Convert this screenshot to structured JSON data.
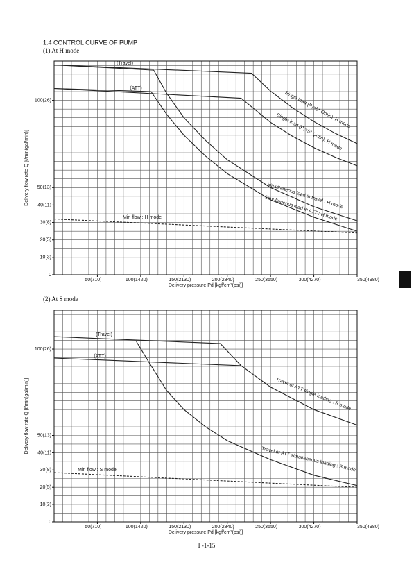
{
  "section_title": "1.4 CONTROL CURVE OF PUMP",
  "page_number": "I -1-15",
  "chart_data": [
    {
      "type": "line",
      "title": "(1) At H mode",
      "x_label": "Delivery pressure Pd [kgf/cm²(psi)]",
      "y_label": "Delivery flow rate Q [ℓ/min(gal/min)]",
      "xlim": [
        0,
        350
      ],
      "ylim": [
        0,
        122.5
      ],
      "xticks": [
        {
          "value": 50,
          "label": "50(710)"
        },
        {
          "value": 100,
          "label": "100(1420)"
        },
        {
          "value": 150,
          "label": "150(2130)"
        },
        {
          "value": 200,
          "label": "200(2840)"
        },
        {
          "value": 250,
          "label": "250(3550)"
        },
        {
          "value": 300,
          "label": "300(4270)"
        },
        {
          "value": 350,
          "label": "350(4980)"
        }
      ],
      "yticks": [
        0,
        {
          "value": 10,
          "label": "10(3)"
        },
        {
          "value": 20,
          "label": "20(5)"
        },
        {
          "value": 30,
          "label": "30(8)"
        },
        {
          "value": 40,
          "label": "40(11)"
        },
        {
          "value": 50,
          "label": "50(13)"
        },
        {
          "value": 100,
          "label": "100(26)"
        }
      ],
      "xgrid": [
        0,
        10,
        20,
        30,
        40,
        50,
        60,
        70,
        80,
        90,
        100,
        110,
        120,
        130,
        140,
        150,
        160,
        170,
        180,
        190,
        200,
        210,
        220,
        230,
        240,
        250,
        260,
        270,
        280,
        290,
        300,
        310,
        320,
        330,
        340,
        350
      ],
      "ygrid": [
        0,
        5,
        10,
        15,
        20,
        25,
        30,
        35,
        40,
        45,
        50,
        55,
        60,
        65,
        70,
        75,
        80,
        85,
        90,
        95,
        100,
        105,
        110,
        115,
        120
      ],
      "grid": true,
      "annotations": [
        "(Travel)",
        "(ATT)"
      ],
      "series": [
        {
          "name": "Single load (P₁=5* Qmin): H mode",
          "color": "#222222",
          "dashed": false,
          "x": [
            0,
            228,
            250,
            275,
            300,
            325,
            350
          ],
          "values": [
            120.3,
            115.5,
            105.3,
            95.8,
            87.8,
            81,
            75.2
          ]
        },
        {
          "name": "Single load (P₁=5* Qmin): H mode",
          "color": "#222222",
          "dashed": false,
          "x": [
            0,
            216,
            250,
            275,
            300,
            325,
            350
          ],
          "values": [
            106.8,
            101.2,
            87.4,
            79.5,
            72.9,
            67.3,
            62.5
          ]
        },
        {
          "name": "Simultaneous load in travel : H mode",
          "color": "#222222",
          "dashed": false,
          "x": [
            0,
            115,
            130,
            150,
            175,
            200,
            250,
            300,
            350
          ],
          "values": [
            120.3,
            117.3,
            104,
            90,
            77,
            66,
            50,
            39,
            31
          ]
        },
        {
          "name": "Simultaneous load in ATT : H mode",
          "color": "#222222",
          "dashed": false,
          "x": [
            0,
            112,
            130,
            150,
            175,
            200,
            250,
            300,
            350
          ],
          "values": [
            106.8,
            105,
            92,
            80,
            68,
            58,
            43,
            33,
            25
          ]
        },
        {
          "name": "Min flow : H mode",
          "color": "#222222",
          "dashed": true,
          "x": [
            0,
            350
          ],
          "values": [
            32,
            24
          ]
        }
      ]
    },
    {
      "type": "line",
      "title": "(2) At S mode",
      "x_label": "Delivery pressure Pd [kgf/cm²(psi)]",
      "y_label": "Delivery flow rate Q [ℓ/min(gal/min)]",
      "xlim": [
        0,
        350
      ],
      "ylim": [
        0,
        122.5
      ],
      "xticks": [
        {
          "value": 50,
          "label": "50(710)"
        },
        {
          "value": 100,
          "label": "100(1420)"
        },
        {
          "value": 150,
          "label": "150(2130)"
        },
        {
          "value": 200,
          "label": "200(2840)"
        },
        {
          "value": 250,
          "label": "250(3550)"
        },
        {
          "value": 300,
          "label": "300(4270)"
        },
        {
          "value": 350,
          "label": "350(4980)"
        }
      ],
      "yticks": [
        0,
        {
          "value": 10,
          "label": "10(3)"
        },
        {
          "value": 20,
          "label": "20(5)"
        },
        {
          "value": 30,
          "label": "30(8)"
        },
        {
          "value": 40,
          "label": "40(11)"
        },
        {
          "value": 50,
          "label": "50(13)"
        },
        {
          "value": 100,
          "label": "100(26)"
        }
      ],
      "xgrid": [
        0,
        10,
        20,
        30,
        40,
        50,
        60,
        70,
        80,
        90,
        100,
        110,
        120,
        130,
        140,
        150,
        160,
        170,
        180,
        190,
        200,
        210,
        220,
        230,
        240,
        250,
        260,
        270,
        280,
        290,
        300,
        310,
        320,
        330,
        340,
        350
      ],
      "ygrid": [
        0,
        5,
        10,
        15,
        20,
        25,
        30,
        35,
        40,
        45,
        50,
        55,
        60,
        65,
        70,
        75,
        80,
        85,
        90,
        95,
        100,
        105,
        110,
        115,
        120
      ],
      "grid": true,
      "annotations": [
        "(Travel)",
        "(ATT)"
      ],
      "series": [
        {
          "name": "Travel or ATT single loading : S mode",
          "color": "#222222",
          "dashed": false,
          "x": [
            0,
            192,
            216,
            250,
            300,
            350
          ],
          "values": [
            107.2,
            103.2,
            90.4,
            78,
            65,
            56
          ]
        },
        {
          "color": "#222222",
          "dashed": false,
          "x": [
            0,
            216
          ],
          "values": [
            94.8,
            90.4
          ]
        },
        {
          "name": "Travel or ATT simultaneous loading : S mode",
          "color": "#222222",
          "dashed": false,
          "x": [
            95,
            110,
            130,
            150,
            175,
            200,
            250,
            300,
            350
          ],
          "values": [
            104.4,
            92,
            76,
            65,
            55,
            47,
            36,
            27,
            21
          ]
        },
        {
          "name": "Min flow : S mode",
          "color": "#222222",
          "dashed": true,
          "x": [
            0,
            350
          ],
          "values": [
            28.5,
            20
          ]
        }
      ]
    }
  ]
}
